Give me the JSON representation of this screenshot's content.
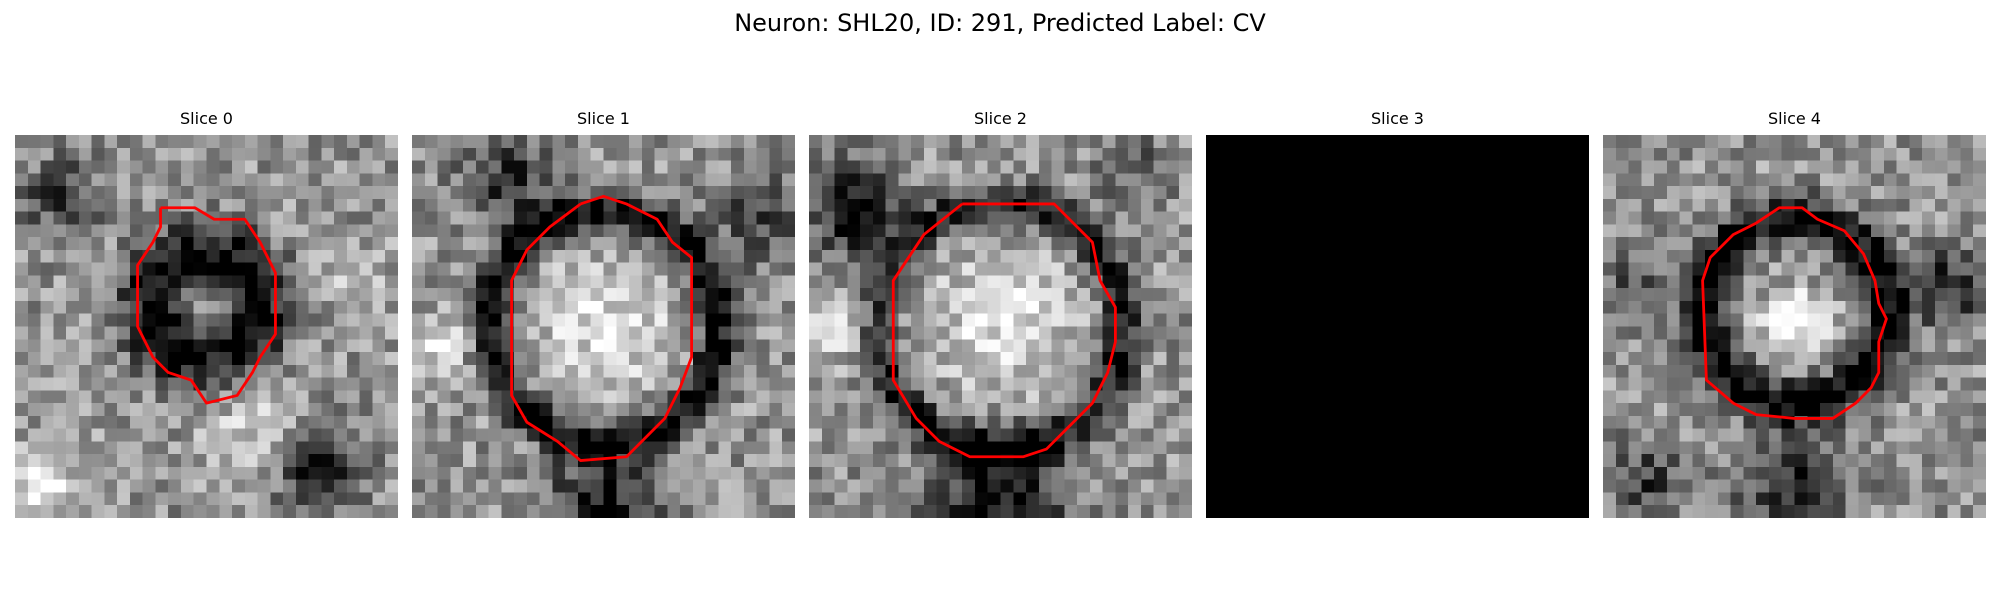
{
  "figure": {
    "title": "Neuron: SHL20, ID: 291, Predicted Label: CV"
  },
  "panels": [
    {
      "title": "Slice 0",
      "blank": false,
      "seed": 11,
      "contour": [
        [
          0.38,
          0.19
        ],
        [
          0.47,
          0.19
        ],
        [
          0.52,
          0.22
        ],
        [
          0.6,
          0.22
        ],
        [
          0.64,
          0.28
        ],
        [
          0.68,
          0.36
        ],
        [
          0.68,
          0.52
        ],
        [
          0.64,
          0.58
        ],
        [
          0.62,
          0.62
        ],
        [
          0.58,
          0.68
        ],
        [
          0.5,
          0.7
        ],
        [
          0.46,
          0.64
        ],
        [
          0.4,
          0.62
        ],
        [
          0.36,
          0.58
        ],
        [
          0.32,
          0.5
        ],
        [
          0.32,
          0.34
        ],
        [
          0.36,
          0.28
        ],
        [
          0.38,
          0.24
        ]
      ],
      "rings": [
        [
          0.5,
          0.45,
          0.14,
          0.09,
          -0.55
        ]
      ],
      "blobs": [
        [
          0.78,
          0.86,
          0.12,
          -0.5
        ],
        [
          0.12,
          0.16,
          0.1,
          -0.35
        ],
        [
          0.65,
          0.78,
          0.14,
          0.28
        ],
        [
          0.06,
          0.92,
          0.1,
          0.35
        ],
        [
          0.9,
          0.4,
          0.09,
          0.22
        ]
      ]
    },
    {
      "title": "Slice 1",
      "blank": false,
      "seed": 23,
      "contour": [
        [
          0.44,
          0.18
        ],
        [
          0.5,
          0.16
        ],
        [
          0.56,
          0.18
        ],
        [
          0.64,
          0.22
        ],
        [
          0.68,
          0.28
        ],
        [
          0.73,
          0.32
        ],
        [
          0.73,
          0.58
        ],
        [
          0.7,
          0.66
        ],
        [
          0.66,
          0.74
        ],
        [
          0.6,
          0.8
        ],
        [
          0.56,
          0.84
        ],
        [
          0.44,
          0.85
        ],
        [
          0.38,
          0.8
        ],
        [
          0.3,
          0.75
        ],
        [
          0.26,
          0.68
        ],
        [
          0.26,
          0.38
        ],
        [
          0.3,
          0.3
        ],
        [
          0.36,
          0.24
        ]
      ],
      "rings": [
        [
          0.5,
          0.5,
          0.3,
          0.05,
          -0.6
        ]
      ],
      "blobs": [
        [
          0.5,
          0.5,
          0.2,
          0.28
        ],
        [
          0.25,
          0.12,
          0.12,
          -0.4
        ],
        [
          0.5,
          0.97,
          0.14,
          -0.5
        ],
        [
          0.9,
          0.22,
          0.12,
          -0.3
        ],
        [
          0.08,
          0.55,
          0.08,
          0.3
        ]
      ]
    },
    {
      "title": "Slice 2",
      "blank": false,
      "seed": 37,
      "contour": [
        [
          0.4,
          0.18
        ],
        [
          0.64,
          0.18
        ],
        [
          0.74,
          0.28
        ],
        [
          0.76,
          0.38
        ],
        [
          0.8,
          0.45
        ],
        [
          0.8,
          0.54
        ],
        [
          0.78,
          0.62
        ],
        [
          0.74,
          0.7
        ],
        [
          0.68,
          0.76
        ],
        [
          0.62,
          0.82
        ],
        [
          0.56,
          0.84
        ],
        [
          0.42,
          0.84
        ],
        [
          0.34,
          0.8
        ],
        [
          0.28,
          0.74
        ],
        [
          0.22,
          0.64
        ],
        [
          0.22,
          0.38
        ],
        [
          0.26,
          0.32
        ],
        [
          0.3,
          0.26
        ]
      ],
      "rings": [
        [
          0.5,
          0.5,
          0.32,
          0.05,
          -0.5
        ]
      ],
      "blobs": [
        [
          0.5,
          0.5,
          0.2,
          0.3
        ],
        [
          0.12,
          0.2,
          0.12,
          -0.55
        ],
        [
          0.5,
          0.96,
          0.18,
          -0.55
        ],
        [
          0.85,
          0.08,
          0.1,
          -0.25
        ],
        [
          0.08,
          0.5,
          0.08,
          0.3
        ]
      ]
    },
    {
      "title": "Slice 3",
      "blank": true,
      "seed": 0,
      "contour": [],
      "rings": [],
      "blobs": []
    },
    {
      "title": "Slice 4",
      "blank": false,
      "seed": 53,
      "contour": [
        [
          0.4,
          0.23
        ],
        [
          0.46,
          0.19
        ],
        [
          0.52,
          0.19
        ],
        [
          0.56,
          0.22
        ],
        [
          0.63,
          0.25
        ],
        [
          0.68,
          0.31
        ],
        [
          0.71,
          0.38
        ],
        [
          0.72,
          0.44
        ],
        [
          0.74,
          0.48
        ],
        [
          0.72,
          0.54
        ],
        [
          0.72,
          0.62
        ],
        [
          0.7,
          0.66
        ],
        [
          0.66,
          0.7
        ],
        [
          0.6,
          0.74
        ],
        [
          0.5,
          0.74
        ],
        [
          0.4,
          0.73
        ],
        [
          0.34,
          0.7
        ],
        [
          0.27,
          0.64
        ],
        [
          0.26,
          0.38
        ],
        [
          0.28,
          0.32
        ],
        [
          0.34,
          0.26
        ]
      ],
      "rings": [
        [
          0.5,
          0.46,
          0.24,
          0.06,
          -0.6
        ]
      ],
      "blobs": [
        [
          0.5,
          0.5,
          0.09,
          0.45
        ],
        [
          0.9,
          0.4,
          0.1,
          -0.45
        ],
        [
          0.12,
          0.9,
          0.1,
          -0.35
        ],
        [
          0.5,
          0.93,
          0.14,
          -0.45
        ],
        [
          0.08,
          0.4,
          0.08,
          -0.3
        ]
      ]
    }
  ]
}
